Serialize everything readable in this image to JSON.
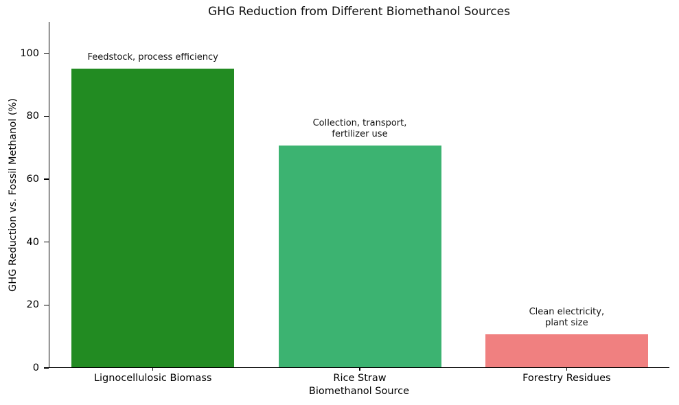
{
  "chart_data": {
    "type": "bar",
    "title": "GHG Reduction from Different Biomethanol Sources",
    "xlabel": "Biomethanol Source",
    "ylabel": "GHG Reduction vs. Fossil Methanol (%)",
    "categories": [
      "Lignocellulosic Biomass",
      "Rice Straw",
      "Forestry Residues"
    ],
    "values": [
      95,
      70.5,
      10.5
    ],
    "bar_colors": [
      "#228B22",
      "#3CB371",
      "#F08080"
    ],
    "annotations": [
      "Feedstock, process efficiency",
      "Collection, transport,\nfertilizer use",
      "Clean electricity,\nplant size"
    ],
    "yticks": [
      0,
      20,
      40,
      60,
      80,
      100
    ],
    "ylim": [
      0,
      110
    ],
    "grid": false,
    "legend_position": "none",
    "background_color": "#ffffff",
    "spine_color": "#000000"
  }
}
